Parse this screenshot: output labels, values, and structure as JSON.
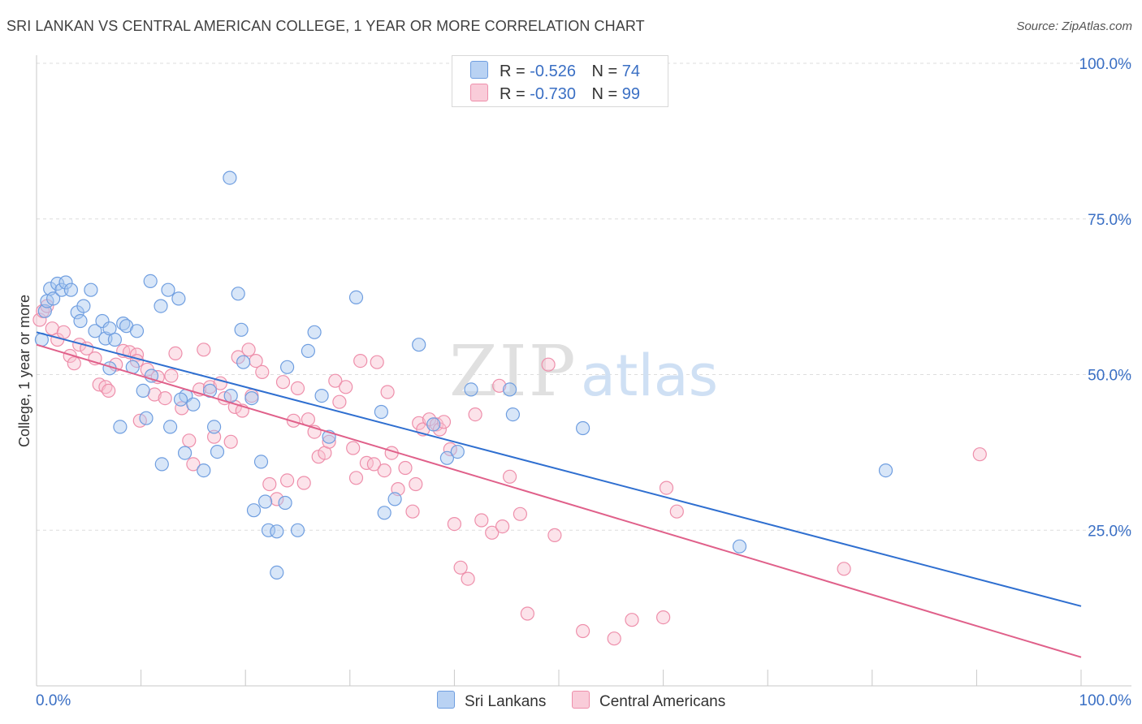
{
  "header": {
    "title": "SRI LANKAN VS CENTRAL AMERICAN COLLEGE, 1 YEAR OR MORE CORRELATION CHART",
    "source": "Source: ZipAtlas.com"
  },
  "legend": {
    "rows": [
      {
        "r_label": "R =",
        "r_value": "-0.526",
        "n_label": "N =",
        "n_value": "74"
      },
      {
        "r_label": "R =",
        "r_value": "-0.730",
        "n_label": "N =",
        "n_value": "99"
      }
    ]
  },
  "bottom_legend": {
    "items": [
      {
        "label": "Sri Lankans"
      },
      {
        "label": "Central Americans"
      }
    ]
  },
  "watermark": {
    "zip": "ZIP",
    "atlas": "atlas"
  },
  "colors": {
    "blue_fill": "#a9c8f0",
    "blue_stroke": "#6f9ee0",
    "blue_line": "#2f6fd0",
    "pink_fill": "#f8c0d0",
    "pink_stroke": "#ee8fab",
    "pink_line": "#e0608a",
    "tick_text": "#3a6fc4",
    "grid": "#dddddd"
  },
  "chart_data": {
    "type": "scatter",
    "title": "SRI LANKAN VS CENTRAL AMERICAN COLLEGE, 1 YEAR OR MORE CORRELATION CHART",
    "xlabel": "",
    "ylabel": "College, 1 year or more",
    "xlim": [
      0,
      100
    ],
    "ylim": [
      0,
      100
    ],
    "x_tick_labels": [
      "0.0%",
      "100.0%"
    ],
    "y_tick_labels": [
      "25.0%",
      "50.0%",
      "75.0%",
      "100.0%"
    ],
    "y_ticks": [
      25,
      50,
      75,
      100
    ],
    "grid": true,
    "legend_position": "top-center",
    "series": [
      {
        "name": "Sri Lankans",
        "color": "#a9c8f0",
        "r": -0.526,
        "n": 74,
        "trend": {
          "x": [
            0,
            100
          ],
          "y": [
            56.8,
            12.8
          ]
        },
        "points": [
          [
            0.5,
            55.6
          ],
          [
            0.8,
            60.2
          ],
          [
            1.0,
            61.8
          ],
          [
            1.3,
            63.8
          ],
          [
            1.6,
            62.2
          ],
          [
            2.0,
            64.6
          ],
          [
            2.4,
            63.6
          ],
          [
            2.8,
            64.8
          ],
          [
            3.3,
            63.6
          ],
          [
            3.9,
            60.0
          ],
          [
            4.2,
            58.6
          ],
          [
            4.5,
            61.0
          ],
          [
            5.2,
            63.6
          ],
          [
            5.6,
            57.0
          ],
          [
            6.3,
            58.6
          ],
          [
            6.6,
            55.8
          ],
          [
            7.0,
            57.4
          ],
          [
            7.5,
            55.6
          ],
          [
            8.3,
            58.2
          ],
          [
            8.6,
            57.8
          ],
          [
            9.6,
            57.0
          ],
          [
            10.9,
            65.0
          ],
          [
            11.9,
            61.0
          ],
          [
            12.6,
            63.6
          ],
          [
            13.6,
            62.2
          ],
          [
            14.3,
            46.6
          ],
          [
            15.0,
            45.2
          ],
          [
            16.6,
            47.4
          ],
          [
            18.6,
            46.6
          ],
          [
            18.5,
            81.6
          ],
          [
            19.3,
            63.0
          ],
          [
            19.6,
            57.2
          ],
          [
            7.0,
            51.0
          ],
          [
            8.0,
            41.6
          ],
          [
            9.2,
            51.2
          ],
          [
            10.2,
            47.4
          ],
          [
            10.5,
            43.0
          ],
          [
            11.0,
            49.8
          ],
          [
            12.0,
            35.6
          ],
          [
            12.8,
            41.6
          ],
          [
            13.8,
            46.0
          ],
          [
            14.2,
            37.4
          ],
          [
            16.0,
            34.6
          ],
          [
            17.0,
            41.6
          ],
          [
            17.3,
            37.6
          ],
          [
            19.8,
            52.0
          ],
          [
            20.6,
            46.2
          ],
          [
            21.5,
            36.0
          ],
          [
            21.9,
            29.6
          ],
          [
            20.8,
            28.2
          ],
          [
            22.2,
            25.0
          ],
          [
            23.0,
            24.8
          ],
          [
            23.8,
            29.4
          ],
          [
            24.0,
            51.2
          ],
          [
            25.0,
            25.0
          ],
          [
            23.0,
            18.2
          ],
          [
            26.0,
            53.8
          ],
          [
            26.6,
            56.8
          ],
          [
            27.3,
            46.6
          ],
          [
            28.0,
            40.0
          ],
          [
            30.6,
            62.4
          ],
          [
            33.0,
            44.0
          ],
          [
            33.3,
            27.8
          ],
          [
            34.3,
            30.0
          ],
          [
            36.6,
            54.8
          ],
          [
            38.0,
            42.0
          ],
          [
            39.3,
            36.6
          ],
          [
            40.3,
            37.6
          ],
          [
            41.6,
            47.6
          ],
          [
            45.3,
            47.6
          ],
          [
            45.6,
            43.6
          ],
          [
            52.3,
            41.4
          ],
          [
            81.3,
            34.6
          ],
          [
            67.3,
            22.4
          ]
        ]
      },
      {
        "name": "Central Americans",
        "color": "#f8c0d0",
        "r": -0.73,
        "n": 99,
        "trend": {
          "x": [
            0,
            100
          ],
          "y": [
            54.8,
            4.6
          ]
        },
        "points": [
          [
            0.3,
            58.8
          ],
          [
            0.6,
            60.2
          ],
          [
            1.0,
            61.0
          ],
          [
            1.5,
            57.4
          ],
          [
            2.0,
            55.6
          ],
          [
            2.6,
            56.8
          ],
          [
            3.2,
            53.0
          ],
          [
            3.6,
            51.8
          ],
          [
            4.1,
            54.8
          ],
          [
            4.8,
            54.2
          ],
          [
            5.6,
            52.6
          ],
          [
            6.0,
            48.4
          ],
          [
            6.6,
            48.0
          ],
          [
            6.9,
            47.4
          ],
          [
            7.6,
            51.6
          ],
          [
            8.3,
            53.8
          ],
          [
            8.9,
            53.6
          ],
          [
            9.6,
            53.2
          ],
          [
            9.9,
            42.6
          ],
          [
            10.6,
            50.8
          ],
          [
            11.3,
            46.8
          ],
          [
            11.6,
            49.6
          ],
          [
            12.3,
            46.2
          ],
          [
            12.9,
            49.8
          ],
          [
            13.3,
            53.4
          ],
          [
            13.9,
            44.6
          ],
          [
            14.6,
            39.4
          ],
          [
            15.0,
            35.6
          ],
          [
            15.6,
            47.6
          ],
          [
            16.0,
            54.0
          ],
          [
            16.6,
            48.0
          ],
          [
            17.0,
            40.0
          ],
          [
            17.6,
            48.6
          ],
          [
            18.0,
            46.2
          ],
          [
            18.6,
            39.2
          ],
          [
            19.0,
            44.8
          ],
          [
            19.3,
            52.8
          ],
          [
            19.7,
            44.2
          ],
          [
            20.3,
            54.0
          ],
          [
            20.6,
            46.6
          ],
          [
            21.0,
            52.2
          ],
          [
            21.6,
            50.4
          ],
          [
            22.3,
            32.4
          ],
          [
            23.0,
            30.0
          ],
          [
            23.6,
            48.8
          ],
          [
            24.0,
            33.0
          ],
          [
            24.6,
            42.6
          ],
          [
            25.0,
            47.8
          ],
          [
            25.6,
            32.6
          ],
          [
            26.0,
            42.8
          ],
          [
            26.6,
            40.8
          ],
          [
            27.0,
            36.8
          ],
          [
            27.6,
            37.4
          ],
          [
            28.0,
            39.2
          ],
          [
            28.6,
            49.0
          ],
          [
            29.0,
            45.6
          ],
          [
            29.6,
            48.0
          ],
          [
            30.3,
            38.2
          ],
          [
            30.6,
            33.4
          ],
          [
            31.0,
            52.2
          ],
          [
            31.6,
            35.8
          ],
          [
            32.3,
            35.6
          ],
          [
            32.6,
            52.0
          ],
          [
            33.3,
            34.6
          ],
          [
            33.6,
            47.2
          ],
          [
            34.0,
            37.4
          ],
          [
            34.6,
            31.6
          ],
          [
            35.3,
            35.0
          ],
          [
            36.0,
            28.0
          ],
          [
            36.3,
            32.4
          ],
          [
            36.6,
            42.2
          ],
          [
            37.0,
            41.2
          ],
          [
            37.6,
            42.8
          ],
          [
            38.3,
            42.0
          ],
          [
            38.6,
            41.2
          ],
          [
            39.0,
            42.4
          ],
          [
            39.6,
            38.0
          ],
          [
            40.0,
            26.0
          ],
          [
            40.6,
            19.0
          ],
          [
            41.3,
            17.2
          ],
          [
            42.0,
            43.6
          ],
          [
            42.6,
            26.6
          ],
          [
            43.6,
            24.6
          ],
          [
            44.3,
            48.2
          ],
          [
            44.6,
            25.6
          ],
          [
            45.3,
            33.6
          ],
          [
            46.3,
            27.6
          ],
          [
            47.0,
            11.6
          ],
          [
            49.0,
            51.6
          ],
          [
            49.6,
            24.2
          ],
          [
            52.3,
            8.8
          ],
          [
            55.3,
            7.6
          ],
          [
            57.0,
            10.6
          ],
          [
            60.0,
            11.0
          ],
          [
            60.3,
            31.8
          ],
          [
            61.3,
            28.0
          ],
          [
            77.3,
            18.8
          ],
          [
            90.3,
            37.2
          ],
          [
            9.6,
            52.2
          ]
        ]
      }
    ]
  }
}
